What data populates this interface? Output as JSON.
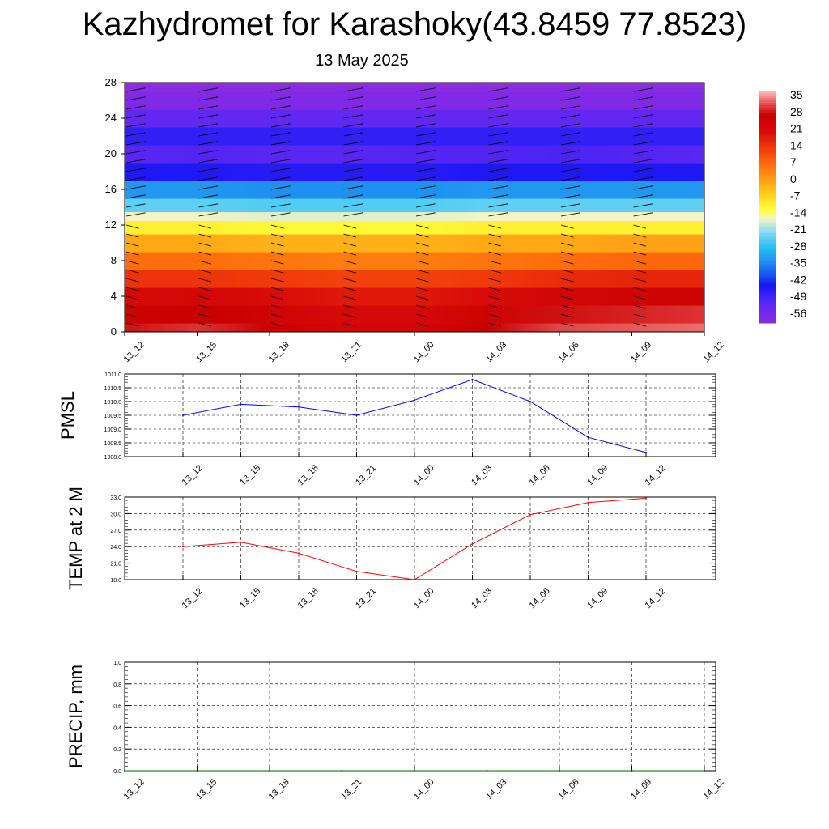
{
  "header": {
    "title": "Kazhydromet for Karashoky(43.8459 77.8523)",
    "date": "13 May 2025"
  },
  "chart_data": [
    {
      "type": "heatmap",
      "title": "",
      "x_tick_labels": [
        "13_12",
        "13_15",
        "13_18",
        "13_21",
        "14_00",
        "14_03",
        "14_06",
        "14_09",
        "14_12"
      ],
      "y_ticks": [
        0,
        4,
        8,
        12,
        16,
        20,
        24,
        28
      ],
      "ylim": [
        0,
        28
      ],
      "colorbar": {
        "tick_labels": [
          "35",
          "28",
          "21",
          "14",
          "7",
          "0",
          "-7",
          "-14",
          "-21",
          "-28",
          "-35",
          "-42",
          "-49",
          "-56"
        ],
        "range": [
          -60,
          38
        ],
        "colors": [
          "#8b2be2",
          "#6a28f0",
          "#3a22f6",
          "#1414f2",
          "#1850f0",
          "#1e90f0",
          "#28c0f0",
          "#7ad8f4",
          "#f4f4c8",
          "#ffff3c",
          "#ffd21c",
          "#ffa214",
          "#ff6e0c",
          "#f03a0a",
          "#d80a0a",
          "#c80000",
          "#de3232",
          "#f08080",
          "#f4c0c0"
        ],
        "color_stops": [
          -60,
          -54,
          -48,
          -44,
          -40,
          -34,
          -28,
          -22,
          -16,
          -12,
          -6,
          0,
          7,
          14,
          21,
          28,
          31,
          35,
          38
        ]
      },
      "rows": [
        {
          "level": 0,
          "temps": [
            29,
            31,
            27,
            24,
            24,
            28,
            32,
            33,
            34
          ]
        },
        {
          "level": 2,
          "temps": [
            26,
            28,
            25,
            22,
            22,
            26,
            29,
            30,
            31
          ]
        },
        {
          "level": 4,
          "temps": [
            22,
            23,
            21,
            19,
            19,
            21,
            24,
            25,
            26
          ]
        },
        {
          "level": 6,
          "temps": [
            15,
            15,
            14,
            13,
            13,
            14,
            16,
            17,
            17
          ]
        },
        {
          "level": 8,
          "temps": [
            7,
            7,
            6,
            5,
            5,
            6,
            7,
            8,
            8
          ]
        },
        {
          "level": 10,
          "temps": [
            -1,
            -1,
            -2,
            -2,
            -2,
            -1,
            -1,
            0,
            0
          ]
        },
        {
          "level": 12,
          "temps": [
            -10,
            -10,
            -11,
            -11,
            -11,
            -10,
            -10,
            -10,
            -10
          ]
        },
        {
          "level": 13,
          "temps": [
            -16,
            -16,
            -17,
            -17,
            -17,
            -16,
            -16,
            -16,
            -16
          ]
        },
        {
          "level": 14,
          "temps": [
            -24,
            -24,
            -25,
            -25,
            -25,
            -24,
            -24,
            -24,
            -24
          ]
        },
        {
          "level": 16,
          "temps": [
            -33,
            -33,
            -34,
            -34,
            -34,
            -33,
            -33,
            -33,
            -33
          ]
        },
        {
          "level": 18,
          "temps": [
            -45,
            -45,
            -46,
            -46,
            -46,
            -45,
            -45,
            -45,
            -45
          ]
        },
        {
          "level": 20,
          "temps": [
            -52,
            -51,
            -52,
            -52,
            -51,
            -51,
            -50,
            -51,
            -52
          ]
        },
        {
          "level": 22,
          "temps": [
            -47,
            -47,
            -47,
            -47,
            -47,
            -47,
            -47,
            -47,
            -47
          ]
        },
        {
          "level": 24,
          "temps": [
            -53,
            -53,
            -53,
            -53,
            -53,
            -53,
            -53,
            -53,
            -53
          ]
        },
        {
          "level": 26,
          "temps": [
            -58,
            -58,
            -58,
            -58,
            -58,
            -58,
            -58,
            -58,
            -58
          ]
        },
        {
          "level": 28,
          "temps": [
            -60,
            -60,
            -60,
            -60,
            -60,
            -60,
            -60,
            -60,
            -60
          ]
        }
      ],
      "wind_barb_levels": [
        1,
        2,
        3,
        4,
        5,
        6,
        7,
        8,
        9,
        10,
        11,
        12,
        13,
        14,
        15,
        16,
        17,
        18,
        19,
        20,
        21,
        22,
        23,
        24,
        25,
        26,
        27
      ]
    },
    {
      "type": "line",
      "ylabel": "PMSL",
      "categories": [
        "13_12",
        "13_15",
        "13_18",
        "13_21",
        "14_00",
        "14_03",
        "14_06",
        "14_09",
        "14_12"
      ],
      "series": [
        {
          "values": [
            1009.5,
            1009.9,
            1009.8,
            1009.5,
            1010.05,
            1010.8,
            1010.0,
            1008.7,
            1008.15
          ],
          "color": "#0000ff"
        }
      ],
      "ylim": [
        1008.0,
        1011.0
      ],
      "y_tick_labels": [
        "1008.0",
        "1008.5",
        "1009.0",
        "1009.5",
        "1010.0",
        "1010.5",
        "1011.0"
      ],
      "grid": true
    },
    {
      "type": "line",
      "ylabel": "TEMP at 2 M",
      "categories": [
        "13_12",
        "13_15",
        "13_18",
        "13_21",
        "14_00",
        "14_03",
        "14_06",
        "14_09",
        "14_12"
      ],
      "series": [
        {
          "values": [
            24.0,
            24.8,
            22.8,
            19.5,
            18.0,
            24.5,
            29.8,
            32.0,
            32.8
          ],
          "color": "#ff0000"
        }
      ],
      "ylim": [
        18.0,
        33.0
      ],
      "y_tick_labels": [
        "18.0",
        "21.0",
        "24.0",
        "27.0",
        "30.0",
        "33.0"
      ],
      "grid": true
    },
    {
      "type": "line",
      "ylabel": "PRECIP, mm",
      "x_tick_labels": [
        "13_12",
        "13_15",
        "13_18",
        "13_21",
        "14_00",
        "14_03",
        "14_06",
        "14_09",
        "14_12"
      ],
      "series": [
        {
          "values": [
            0,
            0,
            0,
            0,
            0,
            0,
            0,
            0,
            0
          ],
          "color": "#006400"
        }
      ],
      "ylim": [
        0.0,
        1.0
      ],
      "y_tick_labels": [
        "0.0",
        "0.2",
        "0.4",
        "0.6",
        "0.8",
        "1.0"
      ],
      "grid": true
    }
  ]
}
